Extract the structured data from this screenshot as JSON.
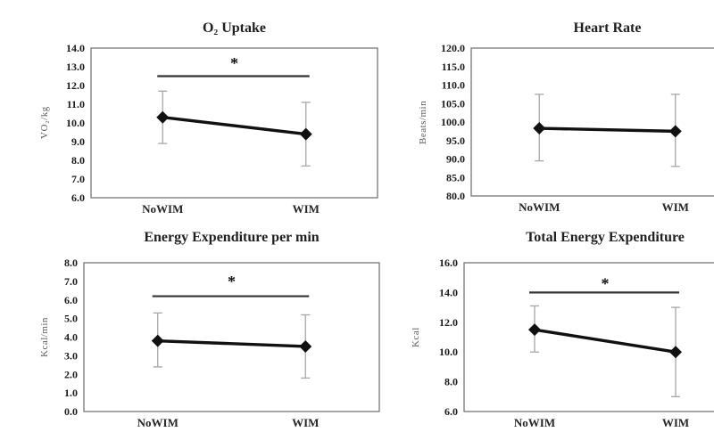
{
  "figure": {
    "background": "#ffffff",
    "conditions": [
      "NoWIM",
      "WIM"
    ]
  },
  "style": {
    "line_color": "#111111",
    "marker_color": "#111111",
    "error_color": "#a6a6a6",
    "frame_color": "#7f7f7f",
    "sig_color": "#333333",
    "title_color": "#1f1f1f",
    "axis_unit_color": "#595959"
  },
  "chart_data": [
    {
      "type": "line",
      "title": "O₂ Uptake",
      "ylabel": "VO₂/kg",
      "xlabel": "",
      "categories": [
        "NoWIM",
        "WIM"
      ],
      "series": [
        {
          "name": "mean",
          "values": [
            10.3,
            9.4
          ]
        }
      ],
      "error_upper": [
        11.7,
        11.1
      ],
      "error_lower": [
        8.9,
        7.7
      ],
      "ylim": [
        6.0,
        14.0
      ],
      "ytick_step": 1.0,
      "grid": false,
      "legend": false,
      "marker": "diamond",
      "significance": {
        "label": "*",
        "line_y": 12.5,
        "label_y": 13.2
      }
    },
    {
      "type": "line",
      "title": "Heart Rate",
      "ylabel": "Beats/min",
      "xlabel": "",
      "categories": [
        "NoWIM",
        "WIM"
      ],
      "series": [
        {
          "name": "mean",
          "values": [
            98.3,
            97.5
          ]
        }
      ],
      "error_upper": [
        107.5,
        107.5
      ],
      "error_lower": [
        89.5,
        88.0
      ],
      "ylim": [
        80.0,
        120.0
      ],
      "ytick_step": 5.0,
      "grid": false,
      "legend": false,
      "marker": "diamond",
      "significance": null
    },
    {
      "type": "line",
      "title": "Energy Expenditure per min",
      "ylabel": "Kcal/min",
      "xlabel": "",
      "categories": [
        "NoWIM",
        "WIM"
      ],
      "series": [
        {
          "name": "mean",
          "values": [
            3.8,
            3.5
          ]
        }
      ],
      "error_upper": [
        5.3,
        5.2
      ],
      "error_lower": [
        2.4,
        1.8
      ],
      "ylim": [
        0.0,
        8.0
      ],
      "ytick_step": 1.0,
      "grid": false,
      "legend": false,
      "marker": "diamond",
      "significance": {
        "label": "*",
        "line_y": 6.2,
        "label_y": 7.0
      }
    },
    {
      "type": "line",
      "title": "Total Energy Expenditure",
      "ylabel": "Kcal",
      "xlabel": "",
      "categories": [
        "NoWIM",
        "WIM"
      ],
      "series": [
        {
          "name": "mean",
          "values": [
            11.5,
            10.0
          ]
        }
      ],
      "error_upper": [
        13.1,
        13.0
      ],
      "error_lower": [
        10.0,
        7.0
      ],
      "ylim": [
        6.0,
        16.0
      ],
      "ytick_step": 2.0,
      "grid": false,
      "legend": false,
      "marker": "diamond",
      "significance": {
        "label": "*",
        "line_y": 14.0,
        "label_y": 14.6
      }
    }
  ]
}
